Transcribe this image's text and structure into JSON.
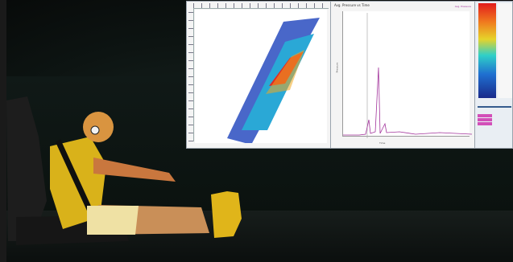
{
  "graph_window": {
    "title": "Avg. Pressure vs Time",
    "legend": "Avg. Pressure",
    "y_axis_label": "Pressure",
    "x_axis_label": "Time"
  },
  "colors": {
    "heatmap_low": "#1f3fa8",
    "heatmap_mid": "#2fd0c8",
    "heatmap_high": "#e21c1c",
    "trace": "#a2339b",
    "dummy_suit": "#d9b21a"
  }
}
